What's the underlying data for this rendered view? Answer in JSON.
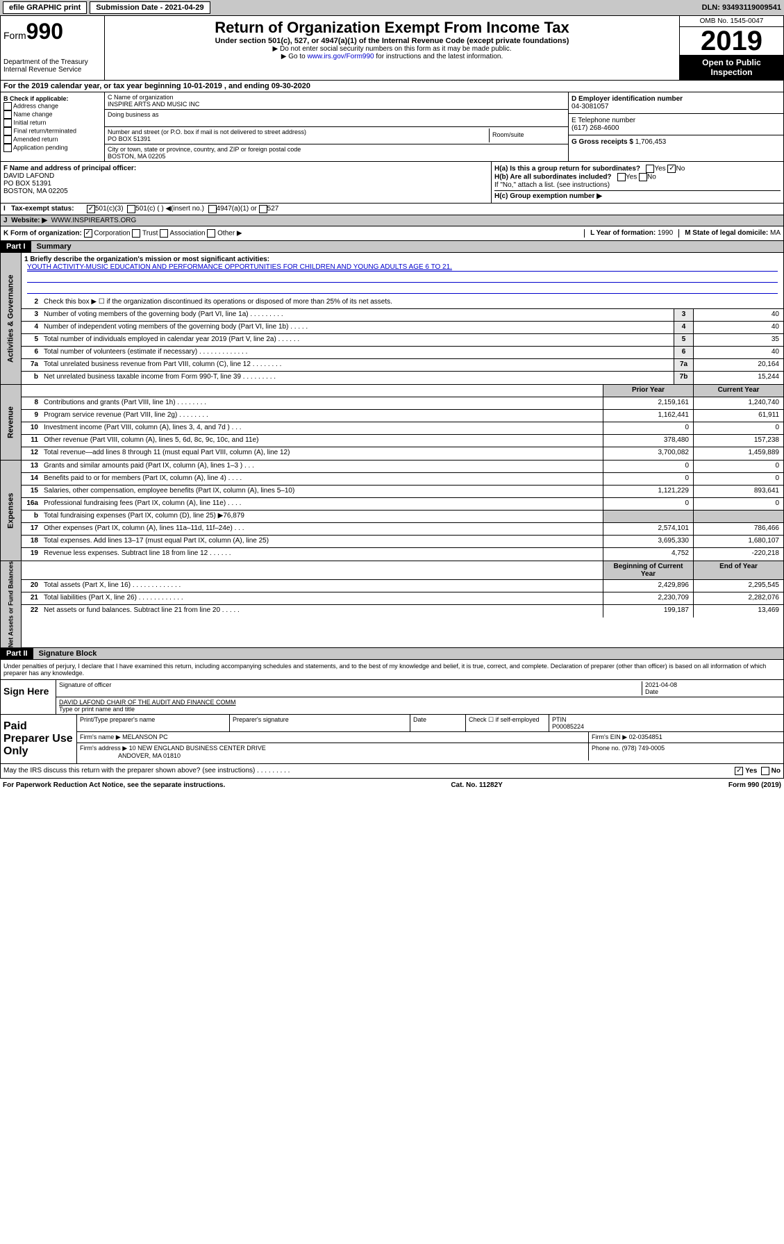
{
  "topbar": {
    "efile": "efile GRAPHIC print",
    "sub_label": "Submission Date - 2021-04-29",
    "dln": "DLN: 93493119009541"
  },
  "header": {
    "form": "Form",
    "form_num": "990",
    "dept": "Department of the Treasury",
    "irs": "Internal Revenue Service",
    "title": "Return of Organization Exempt From Income Tax",
    "sub1": "Under section 501(c), 527, or 4947(a)(1) of the Internal Revenue Code (except private foundations)",
    "sub2": "▶ Do not enter social security numbers on this form as it may be made public.",
    "sub3": "▶ Go to www.irs.gov/Form990 for instructions and the latest information.",
    "omb": "OMB No. 1545-0047",
    "year": "2019",
    "open": "Open to Public Inspection"
  },
  "period": "For the 2019 calendar year, or tax year beginning 10-01-2019    , and ending 09-30-2020",
  "box_b": {
    "label": "B Check if applicable:",
    "addr_change": "Address change",
    "name_change": "Name change",
    "initial": "Initial return",
    "final": "Final return/terminated",
    "amended": "Amended return",
    "app_pending": "Application pending"
  },
  "box_c": {
    "name_label": "C Name of organization",
    "name": "INSPIRE ARTS AND MUSIC INC",
    "dba_label": "Doing business as",
    "addr_label": "Number and street (or P.O. box if mail is not delivered to street address)",
    "room_label": "Room/suite",
    "addr": "PO BOX 51391",
    "city_label": "City or town, state or province, country, and ZIP or foreign postal code",
    "city": "BOSTON, MA  02205"
  },
  "box_d": {
    "label": "D Employer identification number",
    "value": "04-3081057"
  },
  "box_e": {
    "label": "E Telephone number",
    "value": "(617) 268-4600"
  },
  "box_g": {
    "label": "G Gross receipts $",
    "value": "1,706,453"
  },
  "box_f": {
    "label": "F  Name and address of principal officer:",
    "name": "DAVID LAFOND",
    "addr1": "PO BOX 51391",
    "addr2": "BOSTON, MA  02205"
  },
  "box_h": {
    "ha": "H(a)  Is this a group return for subordinates?",
    "hb": "H(b)  Are all subordinates included?",
    "hb_note": "If \"No,\" attach a list. (see instructions)",
    "hc": "H(c)  Group exemption number ▶",
    "yes": "Yes",
    "no": "No"
  },
  "box_i": {
    "label": "Tax-exempt status:",
    "c3": "501(c)(3)",
    "c": "501(c) (  ) ◀(insert no.)",
    "a1": "4947(a)(1) or",
    "527": "527"
  },
  "box_j": {
    "label": "Website: ▶",
    "value": "WWW.INSPIREARTS.ORG"
  },
  "box_k": {
    "label": "K Form of organization:",
    "corp": "Corporation",
    "trust": "Trust",
    "assoc": "Association",
    "other": "Other ▶"
  },
  "box_l": {
    "label": "L Year of formation:",
    "value": "1990"
  },
  "box_m": {
    "label": "M State of legal domicile:",
    "value": "MA"
  },
  "part1": {
    "hdr": "Part I",
    "title": "Summary"
  },
  "summary": {
    "l1_label": "1  Briefly describe the organization's mission or most significant activities:",
    "l1_text": "YOUTH ACTIVITY-MUSIC EDUCATION AND PERFORMANCE OPPORTUNITIES FOR CHILDREN AND YOUNG ADULTS AGE 6 TO 21.",
    "l2": "Check this box ▶ ☐  if the organization discontinued its operations or disposed of more than 25% of its net assets.",
    "l3": "Number of voting members of the governing body (Part VI, line 1a)   .   .   .   .   .   .   .   .   .",
    "l3v": "40",
    "l4": "Number of independent voting members of the governing body (Part VI, line 1b)   .   .   .   .   .",
    "l4v": "40",
    "l5": "Total number of individuals employed in calendar year 2019 (Part V, line 2a)   .   .   .   .   .   .",
    "l5v": "35",
    "l6": "Total number of volunteers (estimate if necessary)   .   .   .   .   .   .   .   .   .   .   .   .   .",
    "l6v": "40",
    "l7a": "Total unrelated business revenue from Part VIII, column (C), line 12   .   .   .   .   .   .   .   .",
    "l7av": "20,164",
    "l7b": "Net unrelated business taxable income from Form 990-T, line 39   .   .   .   .   .   .   .   .   .",
    "l7bv": "15,244"
  },
  "revenue_hdr": {
    "prior": "Prior Year",
    "current": "Current Year"
  },
  "revenue": [
    {
      "n": "8",
      "d": "Contributions and grants (Part VIII, line 1h)   .   .   .   .   .   .   .   .",
      "p": "2,159,161",
      "c": "1,240,740"
    },
    {
      "n": "9",
      "d": "Program service revenue (Part VIII, line 2g)   .   .   .   .   .   .   .   .",
      "p": "1,162,441",
      "c": "61,911"
    },
    {
      "n": "10",
      "d": "Investment income (Part VIII, column (A), lines 3, 4, and 7d )   .   .   .",
      "p": "0",
      "c": "0"
    },
    {
      "n": "11",
      "d": "Other revenue (Part VIII, column (A), lines 5, 6d, 8c, 9c, 10c, and 11e)",
      "p": "378,480",
      "c": "157,238"
    },
    {
      "n": "12",
      "d": "Total revenue—add lines 8 through 11 (must equal Part VIII, column (A), line 12)",
      "p": "3,700,082",
      "c": "1,459,889"
    }
  ],
  "expenses": [
    {
      "n": "13",
      "d": "Grants and similar amounts paid (Part IX, column (A), lines 1–3 )   .   .   .",
      "p": "0",
      "c": "0"
    },
    {
      "n": "14",
      "d": "Benefits paid to or for members (Part IX, column (A), line 4)   .   .   .   .",
      "p": "0",
      "c": "0"
    },
    {
      "n": "15",
      "d": "Salaries, other compensation, employee benefits (Part IX, column (A), lines 5–10)",
      "p": "1,121,229",
      "c": "893,641"
    },
    {
      "n": "16a",
      "d": "Professional fundraising fees (Part IX, column (A), line 11e)   .   .   .   .",
      "p": "0",
      "c": "0"
    },
    {
      "n": "b",
      "d": "Total fundraising expenses (Part IX, column (D), line 25) ▶76,879",
      "p": "",
      "c": ""
    },
    {
      "n": "17",
      "d": "Other expenses (Part IX, column (A), lines 11a–11d, 11f–24e)   .   .   .",
      "p": "2,574,101",
      "c": "786,466"
    },
    {
      "n": "18",
      "d": "Total expenses. Add lines 13–17 (must equal Part IX, column (A), line 25)",
      "p": "3,695,330",
      "c": "1,680,107"
    },
    {
      "n": "19",
      "d": "Revenue less expenses. Subtract line 18 from line 12   .   .   .   .   .   .",
      "p": "4,752",
      "c": "-220,218"
    }
  ],
  "net_hdr": {
    "begin": "Beginning of Current Year",
    "end": "End of Year"
  },
  "net": [
    {
      "n": "20",
      "d": "Total assets (Part X, line 16)   .   .   .   .   .   .   .   .   .   .   .   .   .",
      "p": "2,429,896",
      "c": "2,295,545"
    },
    {
      "n": "21",
      "d": "Total liabilities (Part X, line 26)   .   .   .   .   .   .   .   .   .   .   .   .",
      "p": "2,230,709",
      "c": "2,282,076"
    },
    {
      "n": "22",
      "d": "Net assets or fund balances. Subtract line 21 from line 20   .   .   .   .   .",
      "p": "199,187",
      "c": "13,469"
    }
  ],
  "sidebars": {
    "gov": "Activities & Governance",
    "rev": "Revenue",
    "exp": "Expenses",
    "net": "Net Assets or Fund Balances"
  },
  "part2": {
    "hdr": "Part II",
    "title": "Signature Block"
  },
  "sig": {
    "text": "Under penalties of perjury, I declare that I have examined this return, including accompanying schedules and statements, and to the best of my knowledge and belief, it is true, correct, and complete. Declaration of preparer (other than officer) is based on all information of which preparer has any knowledge.",
    "sign_here": "Sign Here",
    "date": "2021-04-08",
    "sig_officer": "Signature of officer",
    "date_label": "Date",
    "name": "DAVID LAFOND  CHAIR OF THE AUDIT AND FINANCE COMM",
    "type_label": "Type or print name and title"
  },
  "prep": {
    "label": "Paid Preparer Use Only",
    "print_label": "Print/Type preparer's name",
    "sig_label": "Preparer's signature",
    "date_label": "Date",
    "check_label": "Check ☐ if self-employed",
    "ptin_label": "PTIN",
    "ptin": "P00085224",
    "firm_name_label": "Firm's name    ▶",
    "firm_name": "MELANSON PC",
    "firm_ein_label": "Firm's EIN ▶",
    "firm_ein": "02-0354851",
    "firm_addr_label": "Firm's address ▶",
    "firm_addr": "10 NEW ENGLAND BUSINESS CENTER DRIVE",
    "firm_city": "ANDOVER, MA  01810",
    "phone_label": "Phone no.",
    "phone": "(978) 749-0005"
  },
  "discuss": "May the IRS discuss this return with the preparer shown above? (see instructions)   .   .   .   .   .   .   .   .   .",
  "footer": {
    "left": "For Paperwork Reduction Act Notice, see the separate instructions.",
    "mid": "Cat. No. 11282Y",
    "right": "Form 990 (2019)"
  },
  "colors": {
    "gray": "#c8c8c8",
    "blue": "#0000cc"
  }
}
